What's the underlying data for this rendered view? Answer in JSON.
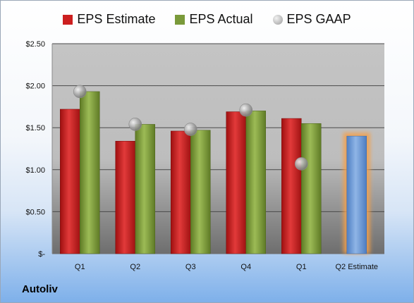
{
  "company": "Autoliv",
  "colors": {
    "estimate": "#cc1f1f",
    "actual": "#7a9a3a",
    "gaap": "#b5b5b5",
    "estimate_next": "#6f9ad6",
    "highlight": "#f5a04a"
  },
  "chart_data": {
    "type": "bar",
    "categories": [
      "Q1",
      "Q2",
      "Q3",
      "Q4",
      "Q1",
      "Q2 Estimate"
    ],
    "series": [
      {
        "name": "EPS Estimate",
        "values": [
          1.72,
          1.34,
          1.46,
          1.69,
          1.61,
          null
        ]
      },
      {
        "name": "EPS Actual",
        "values": [
          1.93,
          1.54,
          1.47,
          1.7,
          1.55,
          null
        ]
      },
      {
        "name": "EPS GAAP",
        "values": [
          1.93,
          1.54,
          1.48,
          1.71,
          1.07,
          null
        ]
      }
    ],
    "forward_estimate": {
      "category": "Q2 Estimate",
      "value": 1.4
    },
    "ylim": [
      0,
      2.5
    ],
    "yticks": [
      {
        "value": 0,
        "label": "$-"
      },
      {
        "value": 0.5,
        "label": "$0.50"
      },
      {
        "value": 1.0,
        "label": "$1.00"
      },
      {
        "value": 1.5,
        "label": "$1.50"
      },
      {
        "value": 2.0,
        "label": "$2.00"
      },
      {
        "value": 2.5,
        "label": "$2.50"
      }
    ],
    "legend": [
      "EPS Estimate",
      "EPS Actual",
      "EPS GAAP"
    ],
    "legend_position": "top",
    "grid": true
  }
}
